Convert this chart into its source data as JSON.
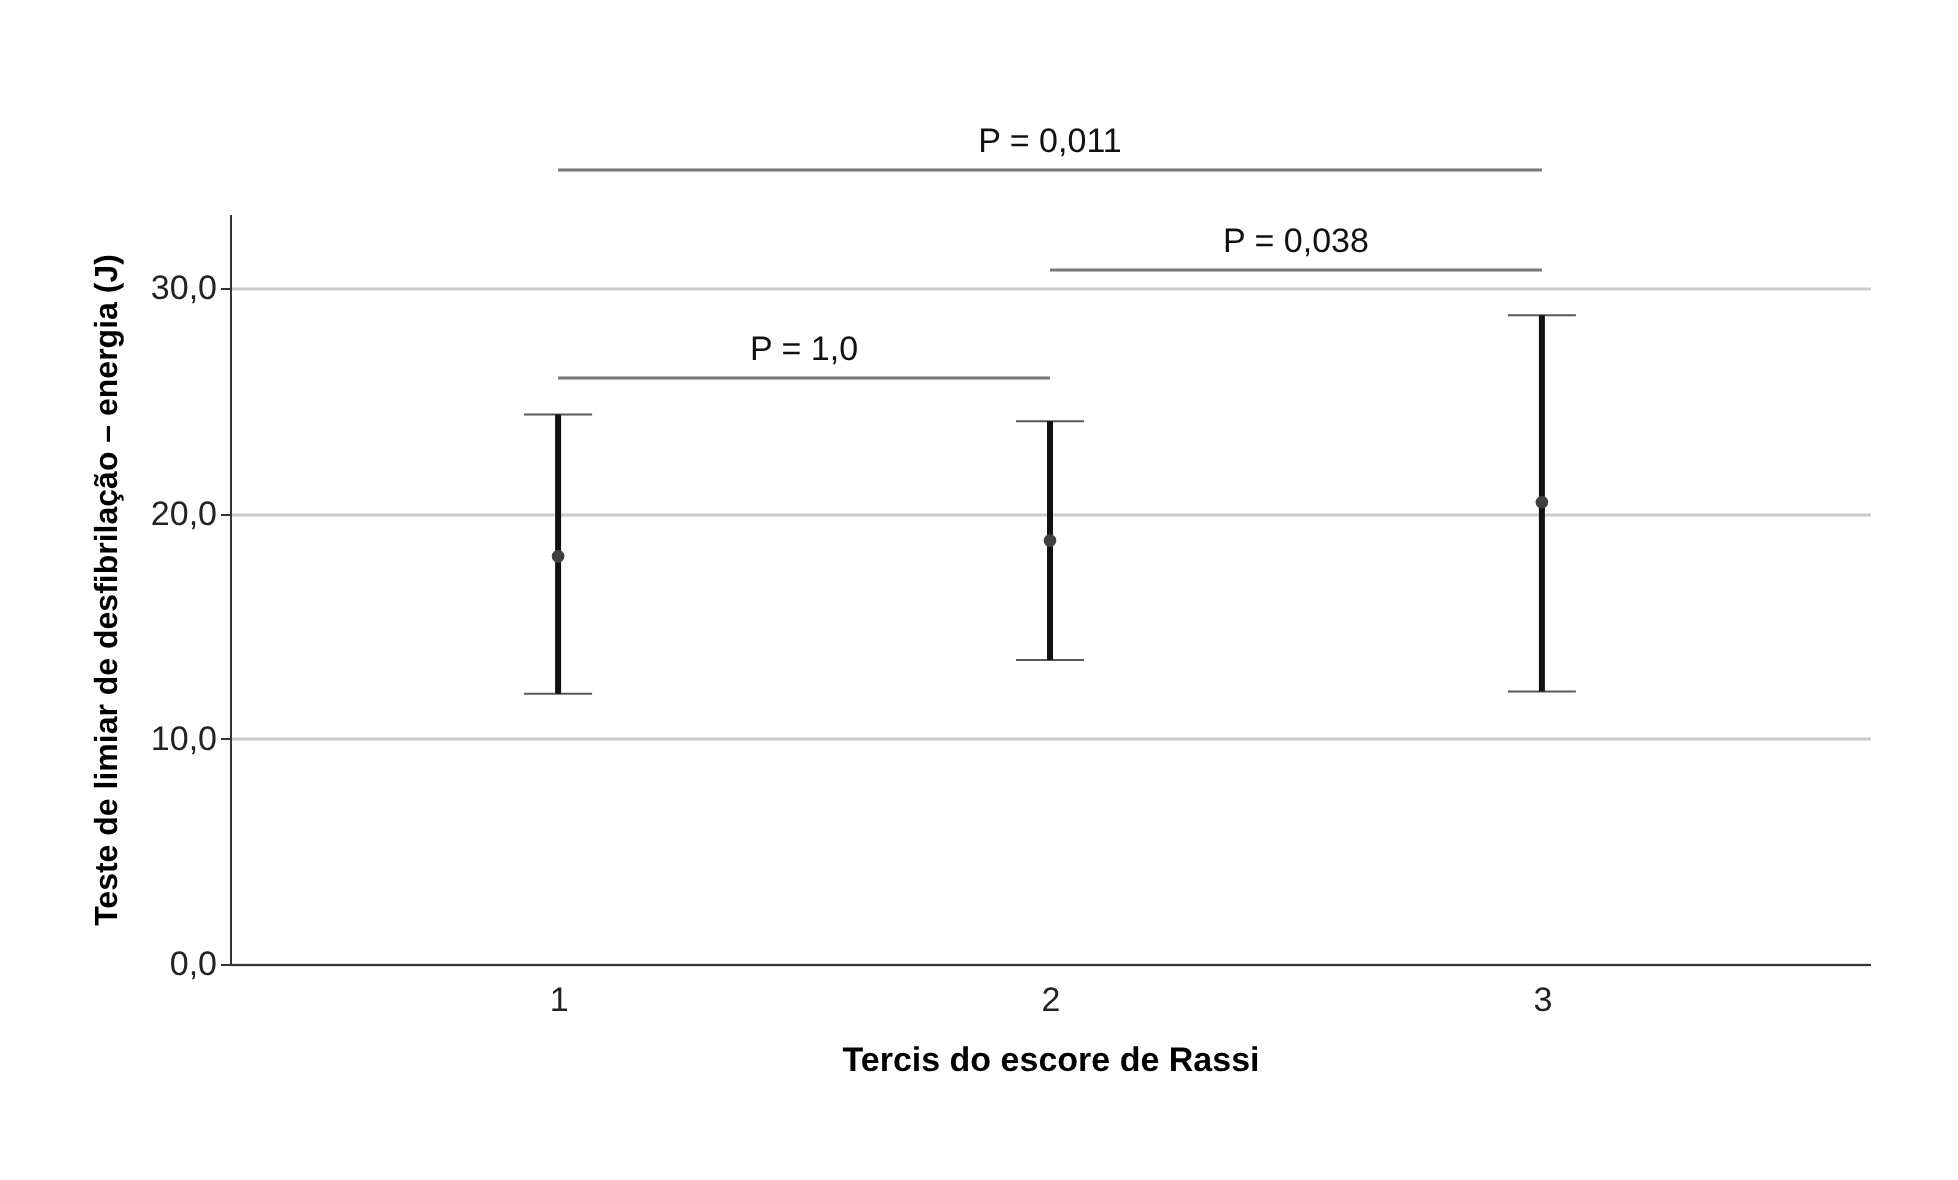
{
  "chart_data": {
    "type": "scatter",
    "xlabel": "Tercis do escore de Rassi",
    "ylabel": "Teste de limiar de desfibrilação – energia (J)",
    "categories": [
      "1",
      "2",
      "3"
    ],
    "series": [
      {
        "color": "#404040",
        "values": [
          18.1,
          18.8,
          20.5
        ],
        "errors": [
          [
            12.0,
            24.4
          ],
          [
            13.5,
            24.1
          ],
          [
            12.1,
            28.8
          ]
        ]
      }
    ],
    "ylim": [
      0,
      33.3
    ],
    "yticks": [
      {
        "value": 0,
        "label": "0,0"
      },
      {
        "value": 10,
        "label": "10,0"
      },
      {
        "value": 20,
        "label": "20,0"
      },
      {
        "value": 30,
        "label": "30,0"
      }
    ],
    "grid": "y",
    "marker": "circle",
    "annotations": [
      "P = 0,011",
      "P = 0,038",
      "P = 1,0"
    ]
  }
}
